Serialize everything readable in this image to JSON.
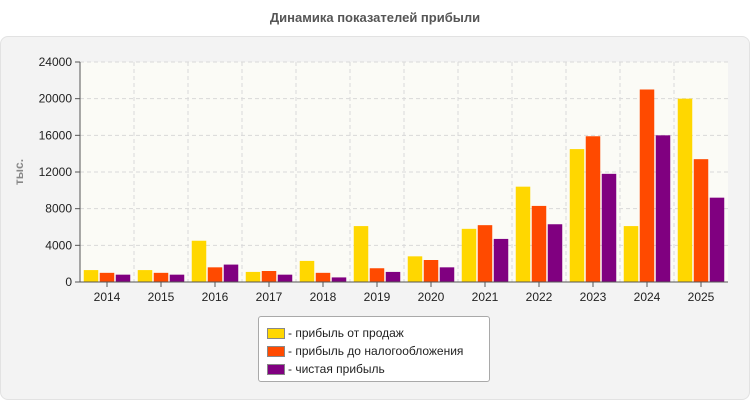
{
  "chart_data": {
    "type": "bar",
    "title": "Динамика показателей прибыли",
    "ylabel": "тыс.",
    "xlabel": "",
    "ylim": [
      0,
      24000
    ],
    "yticks": [
      0,
      4000,
      8000,
      12000,
      16000,
      20000,
      24000
    ],
    "grid": true,
    "legend_position": "bottom-center",
    "categories": [
      "2014",
      "2015",
      "2016",
      "2017",
      "2018",
      "2019",
      "2020",
      "2021",
      "2022",
      "2023",
      "2024",
      "2025"
    ],
    "series": [
      {
        "name": "прибыль от продаж",
        "color": "#ffd700",
        "values": [
          1300,
          1300,
          4500,
          1100,
          2300,
          6100,
          2800,
          5800,
          10400,
          14500,
          6100,
          20000
        ]
      },
      {
        "name": "прибыль до налогообложения",
        "color": "#ff4a00",
        "values": [
          1000,
          1000,
          1600,
          1200,
          1000,
          1500,
          2400,
          6200,
          8300,
          15900,
          21000,
          13400
        ]
      },
      {
        "name": "чистая прибыль",
        "color": "#800080",
        "values": [
          800,
          800,
          1900,
          800,
          500,
          1100,
          1600,
          4700,
          6300,
          11800,
          16000,
          9200
        ]
      }
    ]
  }
}
